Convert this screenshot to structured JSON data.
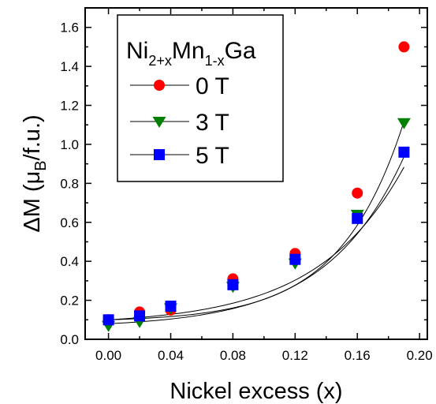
{
  "chart_data": {
    "type": "scatter",
    "xlabel": "Nickel excess (x)",
    "ylabel": {
      "prefix": "ΔM (μ",
      "sub": "B",
      "suffix": "/f.u.)"
    },
    "xlim": [
      -0.015,
      0.205
    ],
    "ylim": [
      0.0,
      1.7
    ],
    "xticks": [
      "0.00",
      "0.04",
      "0.08",
      "0.12",
      "0.16",
      "0.20"
    ],
    "xtick_values": [
      0.0,
      0.04,
      0.08,
      0.12,
      0.16,
      0.2
    ],
    "yticks": [
      "0.0",
      "0.2",
      "0.4",
      "0.6",
      "0.8",
      "1.0",
      "1.2",
      "1.4",
      "1.6"
    ],
    "ytick_values": [
      0.0,
      0.2,
      0.4,
      0.6,
      0.8,
      1.0,
      1.2,
      1.4,
      1.6
    ],
    "legend": {
      "placement": "top-left",
      "title": {
        "a": "Ni",
        "a_sub": "2+x",
        "b": "Mn",
        "b_sub": "1-x",
        "c": "Ga"
      }
    },
    "series": [
      {
        "name": "0 T",
        "marker": "circle",
        "color": "#ff0000",
        "x": [
          0.0,
          0.02,
          0.04,
          0.08,
          0.12,
          0.16,
          0.19
        ],
        "y": [
          0.1,
          0.14,
          0.15,
          0.31,
          0.44,
          0.75,
          1.5
        ]
      },
      {
        "name": "3 T",
        "marker": "triangle-down",
        "color": "#008000",
        "x": [
          0.0,
          0.02,
          0.04,
          0.08,
          0.12,
          0.16,
          0.19
        ],
        "y": [
          0.07,
          0.09,
          0.16,
          0.27,
          0.39,
          0.64,
          1.11
        ]
      },
      {
        "name": "5 T",
        "marker": "square",
        "color": "#0000ff",
        "x": [
          0.0,
          0.02,
          0.04,
          0.08,
          0.12,
          0.16,
          0.19
        ],
        "y": [
          0.1,
          0.12,
          0.17,
          0.28,
          0.41,
          0.62,
          0.96
        ]
      }
    ],
    "fit_curves": [
      {
        "series": "0 T",
        "y0": 0.1,
        "A": 0.01016,
        "k": 24.3
      },
      {
        "series": "3 T",
        "y0": 0.08,
        "A": 0.0196,
        "k": 20.0
      },
      {
        "series": "5 T",
        "y0": 0.1,
        "A": 0.0265,
        "k": 18.0
      }
    ]
  }
}
